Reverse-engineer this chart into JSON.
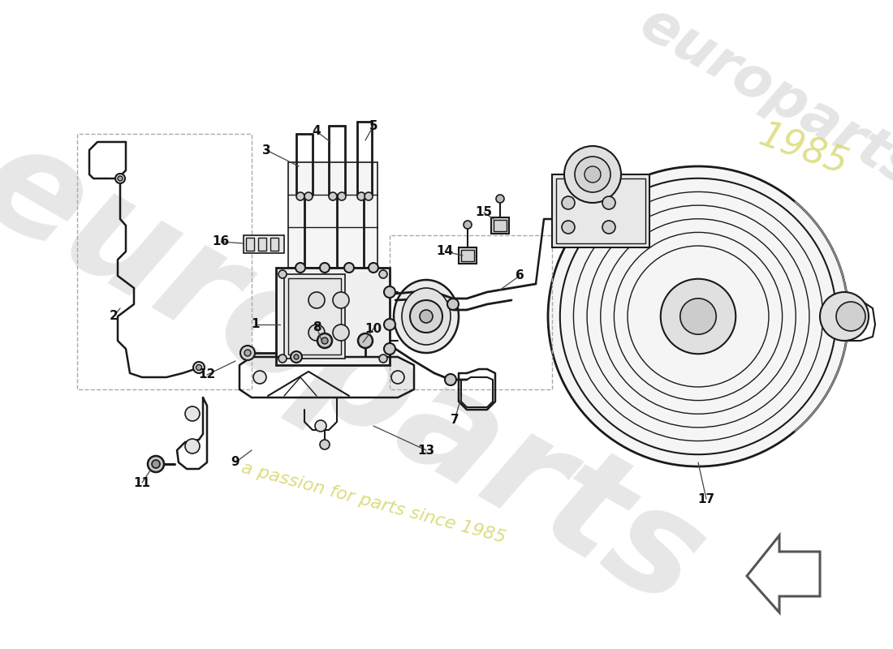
{
  "bg_color": "#ffffff",
  "line_color": "#1a1a1a",
  "dashed_color": "#aaaaaa",
  "part_numbers": [
    "1",
    "2",
    "3",
    "4",
    "5",
    "6",
    "7",
    "8",
    "9",
    "10",
    "11",
    "12",
    "13",
    "14",
    "15",
    "16",
    "17"
  ],
  "watermark1": "europarts",
  "watermark2": "a passion for parts since 1985",
  "figsize": [
    11.0,
    8.0
  ],
  "dpi": 100
}
